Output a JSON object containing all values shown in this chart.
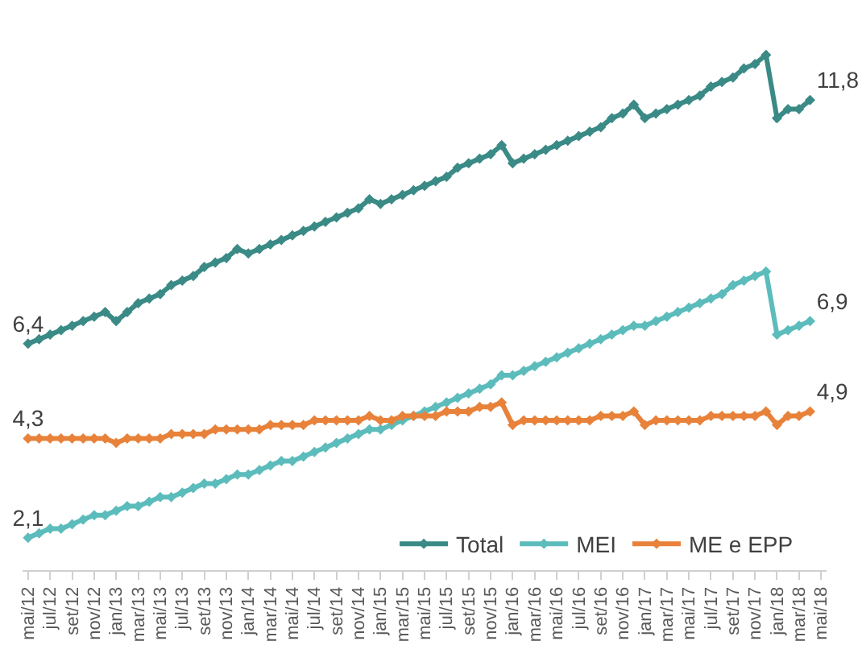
{
  "chart_data": {
    "type": "line",
    "categories": [
      "mai/12",
      null,
      "jul/12",
      null,
      "set/12",
      null,
      "nov/12",
      null,
      "jan/13",
      null,
      "mar/13",
      null,
      "mai/13",
      null,
      "jul/13",
      null,
      "set/13",
      null,
      "nov/13",
      null,
      "jan/14",
      null,
      "mar/14",
      null,
      "mai/14",
      null,
      "jul/14",
      null,
      "set/14",
      null,
      "nov/14",
      null,
      "jan/15",
      null,
      "mar/15",
      null,
      "mai/15",
      null,
      "jul/15",
      null,
      "set/15",
      null,
      "nov/15",
      null,
      "jan/16",
      null,
      "mar/16",
      null,
      "mai/16",
      null,
      "jul/16",
      null,
      "set/16",
      null,
      "nov/16",
      null,
      "jan/17",
      null,
      "mar/17",
      null,
      "mai/17",
      null,
      "jul/17",
      null,
      "set/17",
      null,
      "nov/17",
      null,
      "jan/18",
      null,
      "mar/18",
      null,
      "mai/18"
    ],
    "series": [
      {
        "name": "Total",
        "color": "#3a8a86",
        "values": [
          6.4,
          6.5,
          6.6,
          6.7,
          6.8,
          6.9,
          7.0,
          7.1,
          6.9,
          7.1,
          7.3,
          7.4,
          7.5,
          7.7,
          7.8,
          7.9,
          8.1,
          8.2,
          8.3,
          8.5,
          8.4,
          8.5,
          8.6,
          8.7,
          8.8,
          8.9,
          9.0,
          9.1,
          9.2,
          9.3,
          9.4,
          9.6,
          9.5,
          9.6,
          9.7,
          9.8,
          9.9,
          10.0,
          10.1,
          10.3,
          10.4,
          10.5,
          10.6,
          10.8,
          10.4,
          10.5,
          10.6,
          10.7,
          10.8,
          10.9,
          11.0,
          11.1,
          11.2,
          11.4,
          11.5,
          11.7,
          11.4,
          11.5,
          11.6,
          11.7,
          11.8,
          11.9,
          12.1,
          12.2,
          12.3,
          12.5,
          12.6,
          12.8,
          11.4,
          11.6,
          11.6,
          11.8,
          null
        ],
        "value_labels": [
          "6,4",
          null,
          null,
          null,
          null,
          null,
          null,
          null,
          null,
          null,
          null,
          null,
          null,
          null,
          null,
          null,
          null,
          null,
          null,
          null,
          null,
          null,
          null,
          null,
          null,
          null,
          null,
          null,
          null,
          null,
          null,
          null,
          null,
          null,
          null,
          null,
          null,
          null,
          null,
          null,
          null,
          null,
          null,
          null,
          null,
          null,
          null,
          null,
          null,
          null,
          null,
          null,
          null,
          null,
          null,
          null,
          null,
          null,
          null,
          null,
          null,
          null,
          null,
          null,
          null,
          null,
          null,
          null,
          null,
          null,
          null,
          "11,8",
          null
        ]
      },
      {
        "name": "MEI",
        "color": "#5cbcbc",
        "values": [
          2.1,
          2.2,
          2.3,
          2.3,
          2.4,
          2.5,
          2.6,
          2.6,
          2.7,
          2.8,
          2.8,
          2.9,
          3.0,
          3.0,
          3.1,
          3.2,
          3.3,
          3.3,
          3.4,
          3.5,
          3.5,
          3.6,
          3.7,
          3.8,
          3.8,
          3.9,
          4.0,
          4.1,
          4.2,
          4.3,
          4.4,
          4.5,
          4.5,
          4.6,
          4.7,
          4.8,
          4.9,
          5.0,
          5.1,
          5.2,
          5.3,
          5.4,
          5.5,
          5.7,
          5.7,
          5.8,
          5.9,
          6.0,
          6.1,
          6.2,
          6.3,
          6.4,
          6.5,
          6.6,
          6.7,
          6.8,
          6.8,
          6.9,
          7.0,
          7.1,
          7.2,
          7.3,
          7.4,
          7.5,
          7.7,
          7.8,
          7.9,
          8.0,
          6.6,
          6.7,
          6.8,
          6.9,
          null
        ],
        "value_labels": [
          "2,1",
          null,
          null,
          null,
          null,
          null,
          null,
          null,
          null,
          null,
          null,
          null,
          null,
          null,
          null,
          null,
          null,
          null,
          null,
          null,
          null,
          null,
          null,
          null,
          null,
          null,
          null,
          null,
          null,
          null,
          null,
          null,
          null,
          null,
          null,
          null,
          null,
          null,
          null,
          null,
          null,
          null,
          null,
          null,
          null,
          null,
          null,
          null,
          null,
          null,
          null,
          null,
          null,
          null,
          null,
          null,
          null,
          null,
          null,
          null,
          null,
          null,
          null,
          null,
          null,
          null,
          null,
          null,
          null,
          null,
          null,
          "6,9",
          null
        ]
      },
      {
        "name": "ME e EPP",
        "color": "#e8823a",
        "values": [
          4.3,
          4.3,
          4.3,
          4.3,
          4.3,
          4.3,
          4.3,
          4.3,
          4.2,
          4.3,
          4.3,
          4.3,
          4.3,
          4.4,
          4.4,
          4.4,
          4.4,
          4.5,
          4.5,
          4.5,
          4.5,
          4.5,
          4.6,
          4.6,
          4.6,
          4.6,
          4.7,
          4.7,
          4.7,
          4.7,
          4.7,
          4.8,
          4.7,
          4.7,
          4.8,
          4.8,
          4.8,
          4.8,
          4.9,
          4.9,
          4.9,
          5.0,
          5.0,
          5.1,
          4.6,
          4.7,
          4.7,
          4.7,
          4.7,
          4.7,
          4.7,
          4.7,
          4.8,
          4.8,
          4.8,
          4.9,
          4.6,
          4.7,
          4.7,
          4.7,
          4.7,
          4.7,
          4.8,
          4.8,
          4.8,
          4.8,
          4.8,
          4.9,
          4.6,
          4.8,
          4.8,
          4.9,
          null
        ],
        "value_labels": [
          "4,3",
          null,
          null,
          null,
          null,
          null,
          null,
          null,
          null,
          null,
          null,
          null,
          null,
          null,
          null,
          null,
          null,
          null,
          null,
          null,
          null,
          null,
          null,
          null,
          null,
          null,
          null,
          null,
          null,
          null,
          null,
          null,
          null,
          null,
          null,
          null,
          null,
          null,
          null,
          null,
          null,
          null,
          null,
          null,
          null,
          null,
          null,
          null,
          null,
          null,
          null,
          null,
          null,
          null,
          null,
          null,
          null,
          null,
          null,
          null,
          null,
          null,
          null,
          null,
          null,
          null,
          null,
          null,
          null,
          null,
          null,
          "4,9",
          null
        ]
      }
    ],
    "tick_labels": "x",
    "legend": "bottom right",
    "marker": "diamond",
    "line_style": "solid"
  }
}
